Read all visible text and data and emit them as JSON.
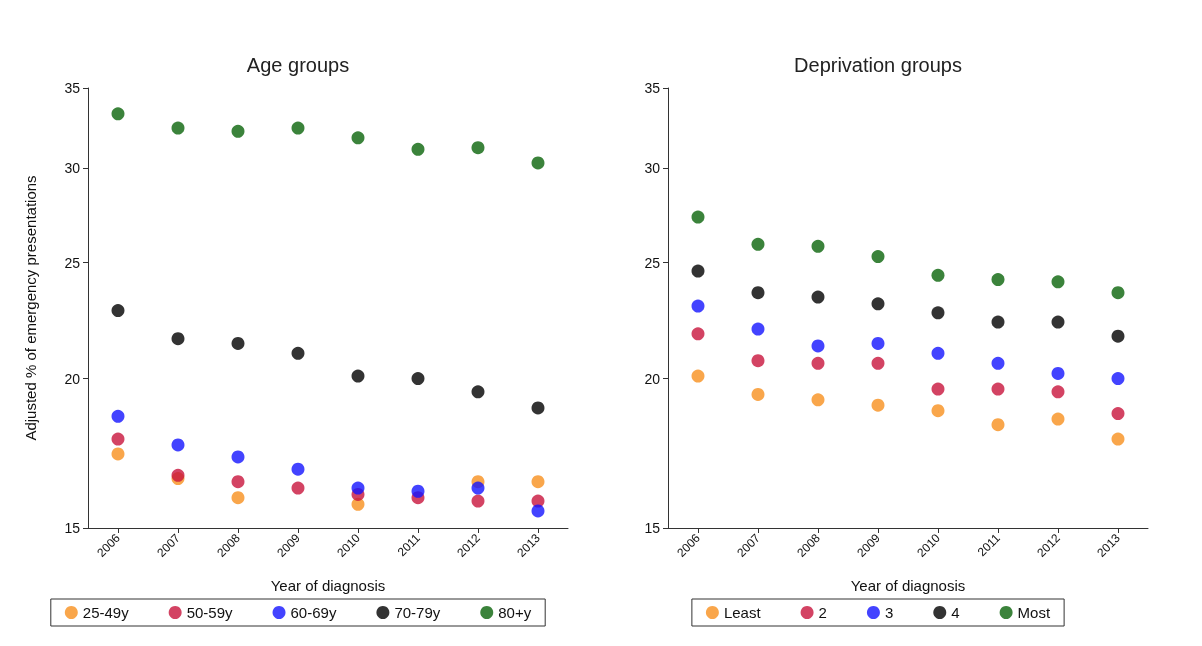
{
  "chart_data": [
    {
      "type": "scatter",
      "title": "Age groups",
      "xlabel": "Year of diagnosis",
      "ylabel": "Adjusted % of emergency presentations",
      "categories": [
        "2006",
        "2007",
        "2008",
        "2009",
        "2010",
        "2011",
        "2012",
        "2013"
      ],
      "ylim": [
        15,
        35
      ],
      "yticks": [
        15,
        20,
        25,
        30,
        35
      ],
      "log": "y",
      "grid": false,
      "legend": "bottom",
      "marker": "circle",
      "series": [
        {
          "name": "25-49y",
          "color": "#f7901e",
          "values": [
            17.3,
            16.5,
            15.9,
            null,
            15.7,
            null,
            16.4,
            16.4
          ]
        },
        {
          "name": "50-59y",
          "color": "#c8143c",
          "values": [
            17.8,
            16.6,
            16.4,
            16.2,
            16.0,
            15.9,
            15.8,
            15.8
          ]
        },
        {
          "name": "60-69y",
          "color": "#1414ff",
          "values": [
            18.6,
            17.6,
            17.2,
            16.8,
            16.2,
            16.1,
            16.2,
            15.5
          ]
        },
        {
          "name": "70-79y",
          "color": "#000000",
          "values": [
            22.8,
            21.6,
            21.4,
            21.0,
            20.1,
            20.0,
            19.5,
            18.9
          ]
        },
        {
          "name": "80+y",
          "color": "#0a640a",
          "values": [
            33.3,
            32.4,
            32.2,
            32.4,
            31.8,
            31.1,
            31.2,
            30.3
          ]
        }
      ]
    },
    {
      "type": "scatter",
      "title": "Deprivation groups",
      "xlabel": "Year of diagnosis",
      "categories": [
        "2006",
        "2007",
        "2008",
        "2009",
        "2010",
        "2011",
        "2012",
        "2013"
      ],
      "ylim": [
        15,
        35
      ],
      "yticks": [
        15,
        20,
        25,
        30,
        35
      ],
      "log": "y",
      "grid": false,
      "legend": "bottom",
      "marker": "circle",
      "series": [
        {
          "name": "Least",
          "color": "#f7901e",
          "values": [
            20.1,
            19.4,
            19.2,
            19.0,
            18.8,
            18.3,
            18.5,
            17.8
          ]
        },
        {
          "name": "2",
          "color": "#c8143c",
          "values": [
            21.8,
            20.7,
            20.6,
            20.6,
            19.6,
            19.6,
            19.5,
            18.7
          ]
        },
        {
          "name": "3",
          "color": "#1414ff",
          "values": [
            23.0,
            22.0,
            21.3,
            21.4,
            21.0,
            20.6,
            20.2,
            20.0
          ]
        },
        {
          "name": "4",
          "color": "#000000",
          "values": [
            24.6,
            23.6,
            23.4,
            23.1,
            22.7,
            22.3,
            22.3,
            21.7
          ]
        },
        {
          "name": "Most",
          "color": "#0a640a",
          "values": [
            27.3,
            25.9,
            25.8,
            25.3,
            24.4,
            24.2,
            24.1,
            23.6
          ]
        }
      ]
    }
  ]
}
